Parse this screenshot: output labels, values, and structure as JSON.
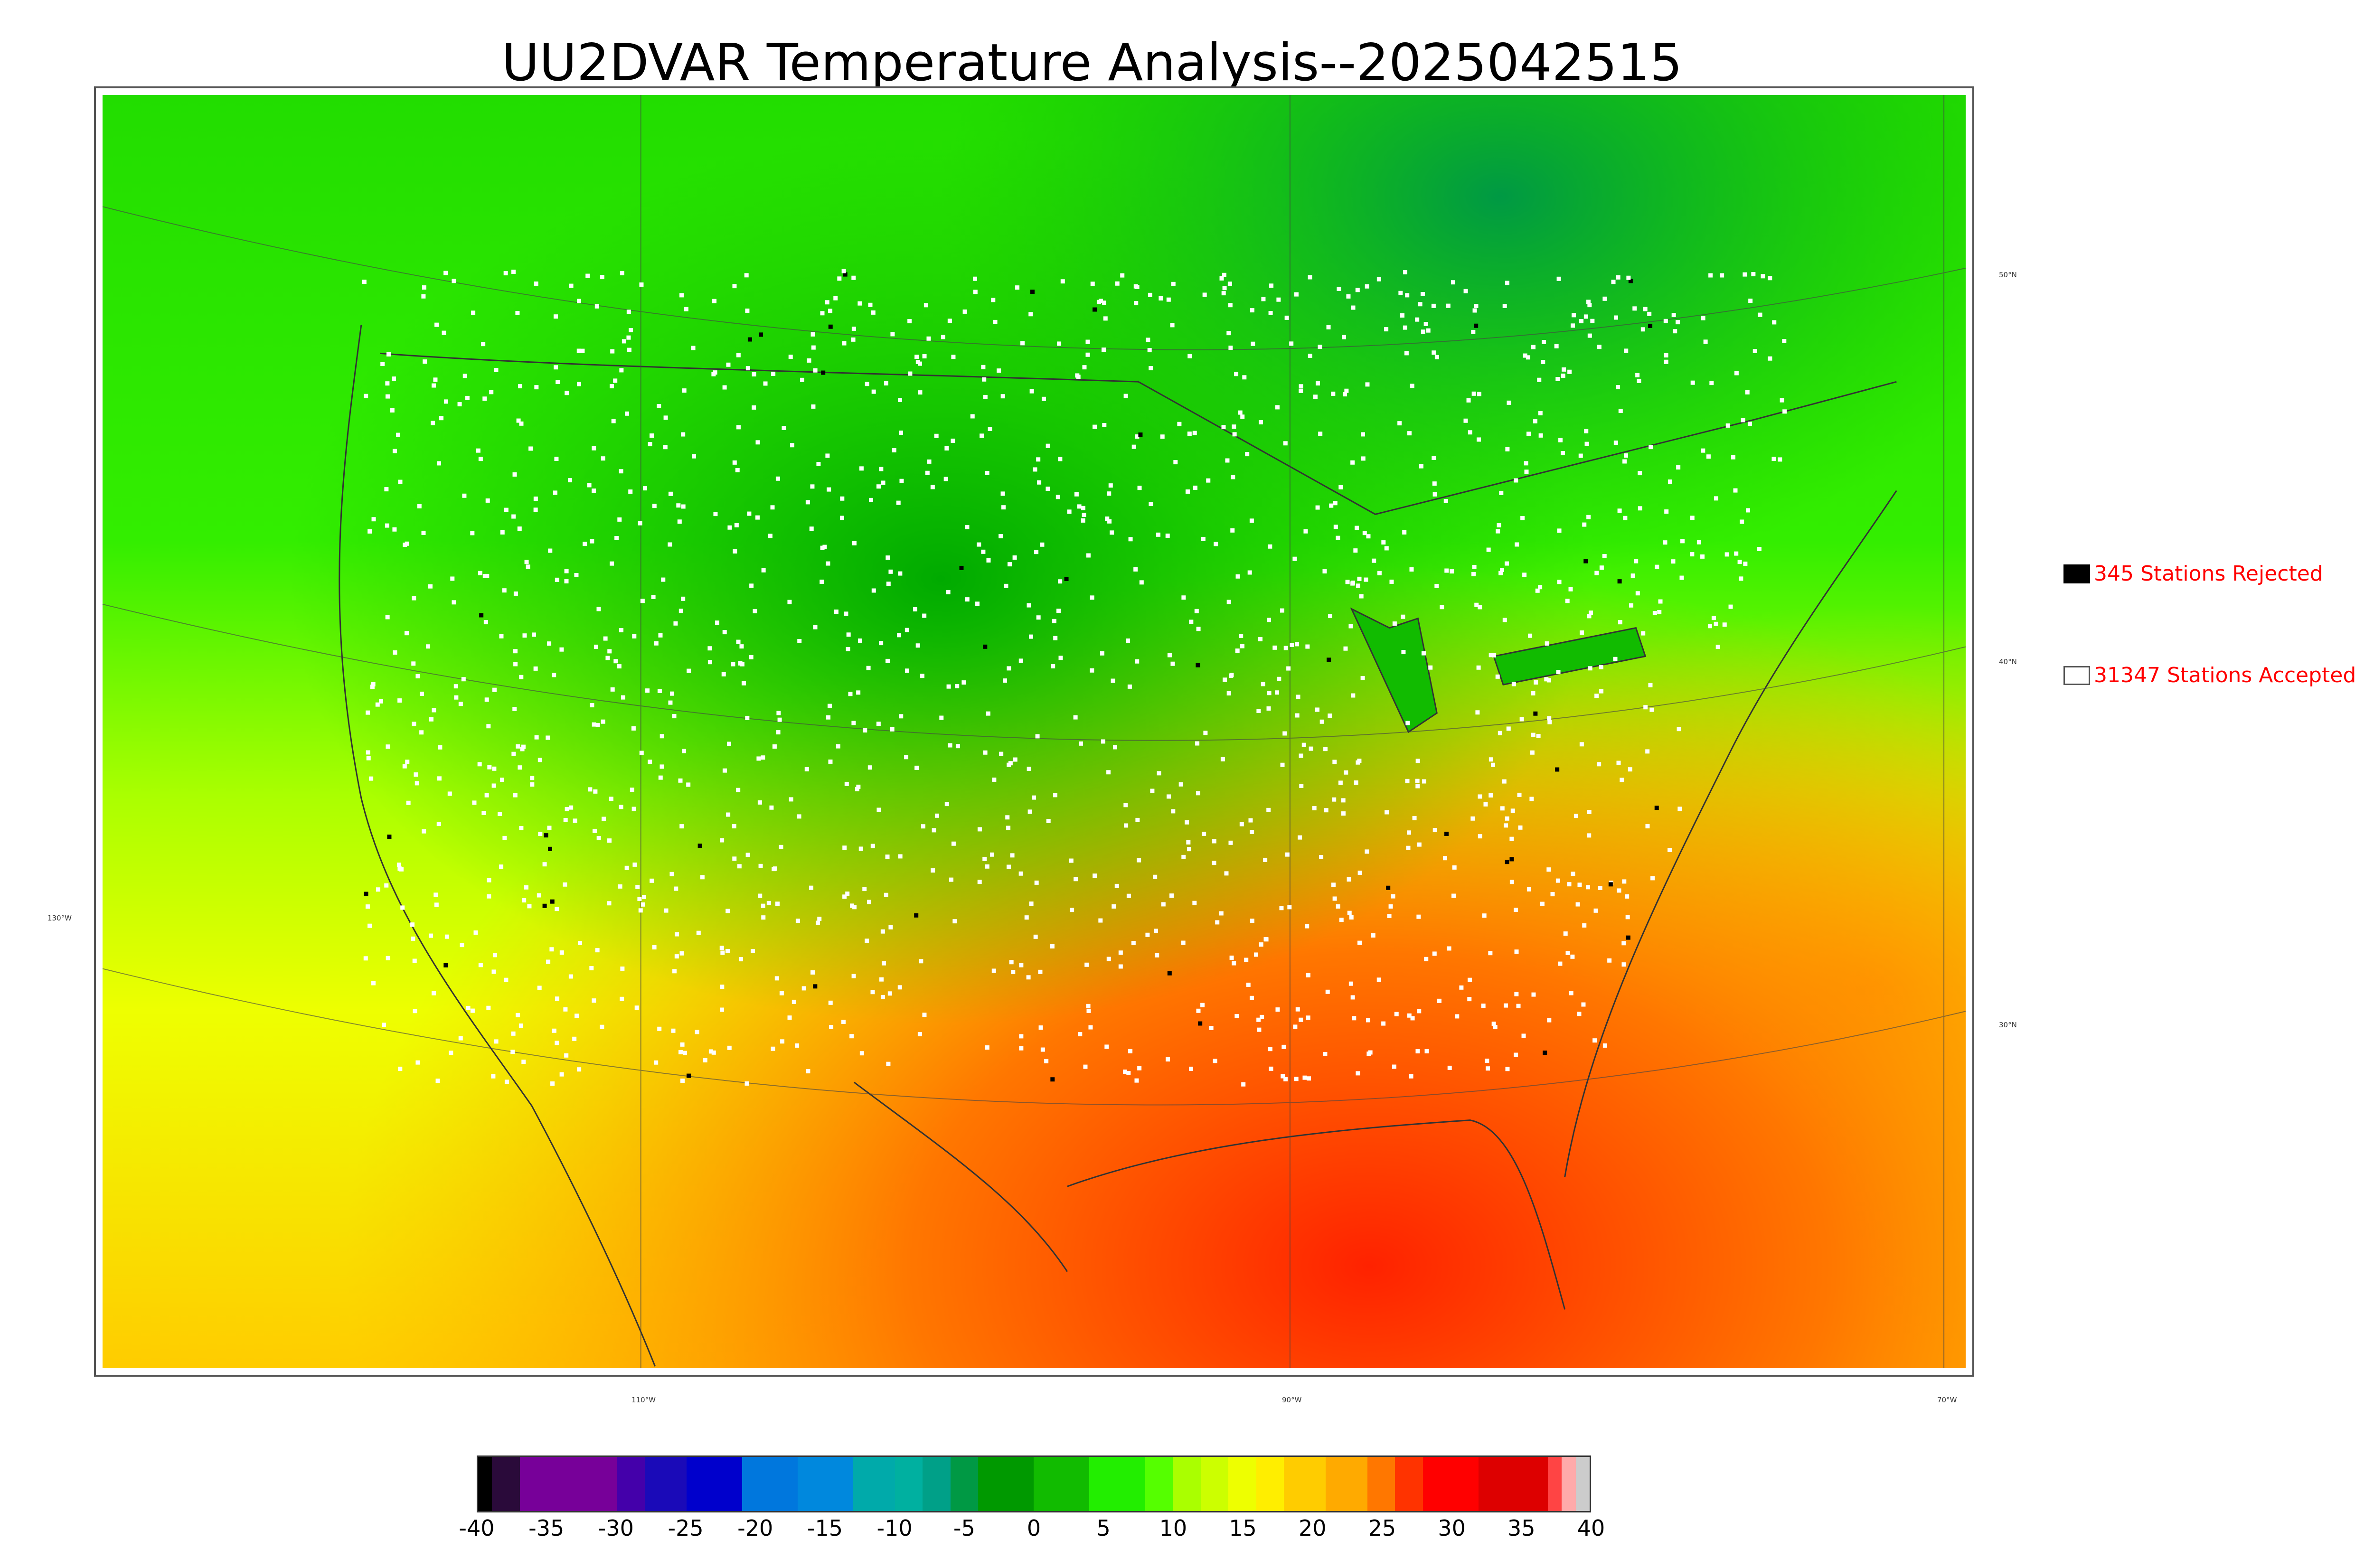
{
  "title": "UU2DVAR Temperature Analysis--2025042515",
  "legend": {
    "rejected": {
      "label": "345 Stations Rejected",
      "color": "#000000"
    },
    "accepted": {
      "label": "31347 Stations Accepted",
      "color": "#ffffff"
    }
  },
  "graticule": {
    "latitudes": [
      "50°N",
      "40°N",
      "30°N"
    ],
    "longitudes": [
      "130°W",
      "110°W",
      "90°W",
      "70°W"
    ]
  },
  "colorbar": {
    "ticks": [
      "-40",
      "-35",
      "-30",
      "-25",
      "-20",
      "-15",
      "-10",
      "-5",
      "0",
      "5",
      "10",
      "15",
      "20",
      "25",
      "30",
      "35",
      "40"
    ],
    "segments": [
      {
        "from": -40,
        "to": -39,
        "color": "#000000"
      },
      {
        "from": -39,
        "to": -37,
        "color": "#2a0a3a"
      },
      {
        "from": -37,
        "to": -30,
        "color": "#770099"
      },
      {
        "from": -30,
        "to": -28,
        "color": "#4400aa"
      },
      {
        "from": -28,
        "to": -25,
        "color": "#1a0ab8"
      },
      {
        "from": -25,
        "to": -21,
        "color": "#0000cc"
      },
      {
        "from": -21,
        "to": -17,
        "color": "#0077dd"
      },
      {
        "from": -17,
        "to": -13,
        "color": "#0088dd"
      },
      {
        "from": -13,
        "to": -10,
        "color": "#00aaaa"
      },
      {
        "from": -10,
        "to": -8,
        "color": "#00b0a0"
      },
      {
        "from": -8,
        "to": -6,
        "color": "#00a088"
      },
      {
        "from": -6,
        "to": -4,
        "color": "#009944"
      },
      {
        "from": -4,
        "to": 0,
        "color": "#009900"
      },
      {
        "from": 0,
        "to": 4,
        "color": "#11bb00"
      },
      {
        "from": 4,
        "to": 8,
        "color": "#22ee00"
      },
      {
        "from": 8,
        "to": 10,
        "color": "#55ff00"
      },
      {
        "from": 10,
        "to": 12,
        "color": "#aaff00"
      },
      {
        "from": 12,
        "to": 14,
        "color": "#ccff00"
      },
      {
        "from": 14,
        "to": 16,
        "color": "#eeff00"
      },
      {
        "from": 16,
        "to": 18,
        "color": "#ffee00"
      },
      {
        "from": 18,
        "to": 21,
        "color": "#ffcc00"
      },
      {
        "from": 21,
        "to": 24,
        "color": "#ffaa00"
      },
      {
        "from": 24,
        "to": 26,
        "color": "#ff7700"
      },
      {
        "from": 26,
        "to": 28,
        "color": "#ff3300"
      },
      {
        "from": 28,
        "to": 32,
        "color": "#ff0000"
      },
      {
        "from": 32,
        "to": 37,
        "color": "#dd0000"
      },
      {
        "from": 37,
        "to": 38,
        "color": "#ff4444"
      },
      {
        "from": 38,
        "to": 39,
        "color": "#ffaaaa"
      },
      {
        "from": 39,
        "to": 40,
        "color": "#cccccc"
      }
    ]
  }
}
